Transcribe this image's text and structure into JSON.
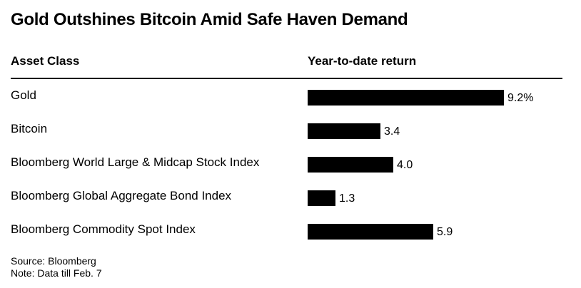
{
  "chart_data": {
    "type": "bar",
    "orientation": "horizontal",
    "title": "Gold Outshines Bitcoin Amid Safe Haven Demand",
    "columns": [
      "Asset Class",
      "Year-to-date return"
    ],
    "categories": [
      "Gold",
      "Bitcoin",
      "Bloomberg World Large & Midcap Stock Index",
      "Bloomberg Global Aggregate Bond Index",
      "Bloomberg Commodity Spot Index"
    ],
    "values": [
      9.2,
      3.4,
      4.0,
      1.3,
      5.9
    ],
    "value_labels": [
      "9.2%",
      "3.4",
      "4.0",
      "1.3",
      "5.9"
    ],
    "unit": "%",
    "bar_color": "#000000",
    "xlim": [
      0,
      9.2
    ],
    "grid": false,
    "legend": "none"
  },
  "footer": {
    "source": "Source: Bloomberg",
    "note": "Note: Data till Feb. 7"
  }
}
